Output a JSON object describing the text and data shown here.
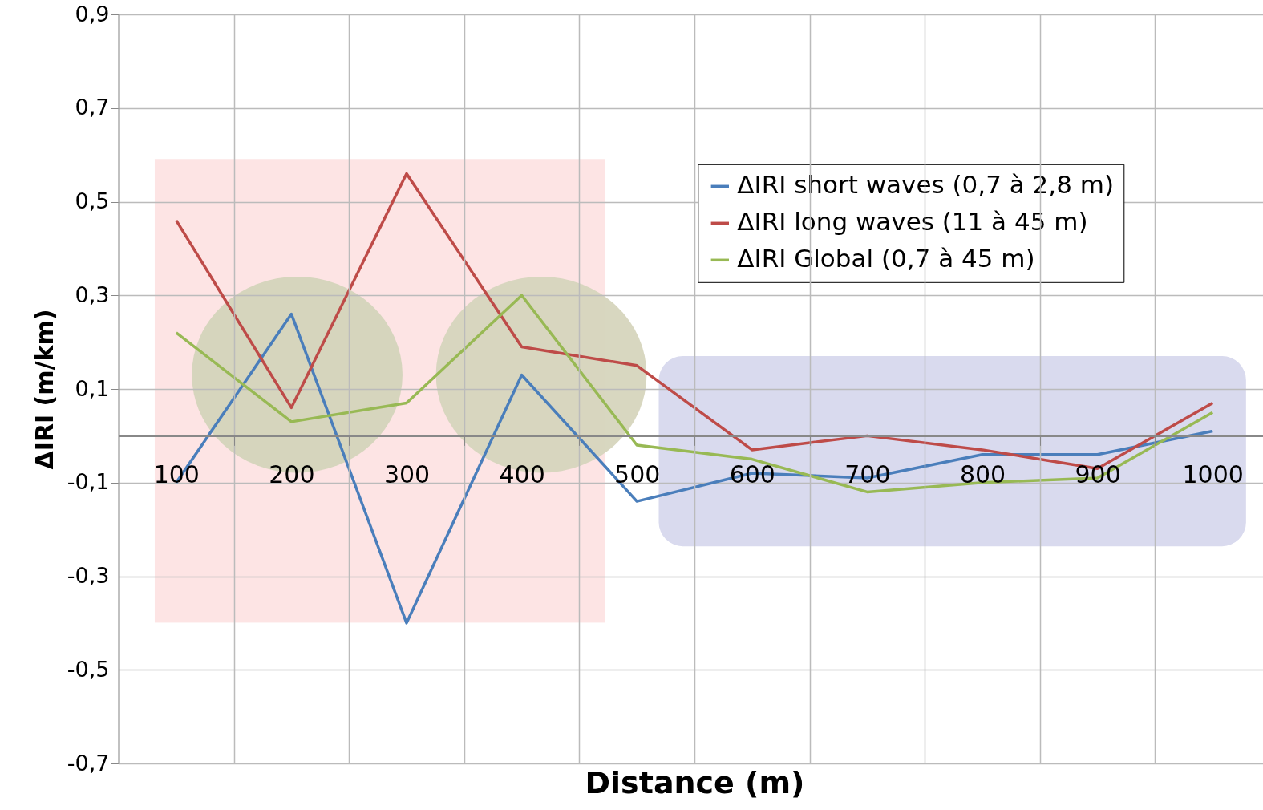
{
  "chart_data": {
    "type": "line",
    "xlabel": "Distance (m)",
    "ylabel": "ΔIRI (m/km)",
    "categories": [
      "100",
      "200",
      "300",
      "400",
      "500",
      "600",
      "700",
      "800",
      "900",
      "1000"
    ],
    "series": [
      {
        "name": "ΔIRI short waves (0,7 à 2,8 m)",
        "color": "#4a7ebb",
        "values": [
          -0.1,
          0.26,
          -0.4,
          0.13,
          -0.14,
          -0.08,
          -0.09,
          -0.04,
          -0.04,
          0.01
        ]
      },
      {
        "name": "ΔIRI long waves (11 à 45 m)",
        "color": "#be4b48",
        "values": [
          0.46,
          0.06,
          0.56,
          0.19,
          0.15,
          -0.03,
          0.0,
          -0.03,
          -0.07,
          0.07
        ]
      },
      {
        "name": "ΔIRI Global (0,7 à 45 m)",
        "color": "#98b954",
        "values": [
          0.22,
          0.03,
          0.07,
          0.3,
          -0.02,
          -0.05,
          -0.12,
          -0.1,
          -0.09,
          0.05
        ]
      }
    ],
    "ylim": [
      -0.7,
      0.9
    ],
    "yticks": [
      {
        "value": -0.7,
        "label": "-0,7"
      },
      {
        "value": -0.5,
        "label": "-0,5"
      },
      {
        "value": -0.3,
        "label": "-0,3"
      },
      {
        "value": -0.1,
        "label": "-0,1"
      },
      {
        "value": 0.1,
        "label": "0,1"
      },
      {
        "value": 0.3,
        "label": "0,3"
      },
      {
        "value": 0.5,
        "label": "0,5"
      },
      {
        "value": 0.7,
        "label": "0,7"
      },
      {
        "value": 0.9,
        "label": "0,9"
      }
    ],
    "grid": true,
    "legend": "top right",
    "marker": "none",
    "line_style": "solid"
  }
}
